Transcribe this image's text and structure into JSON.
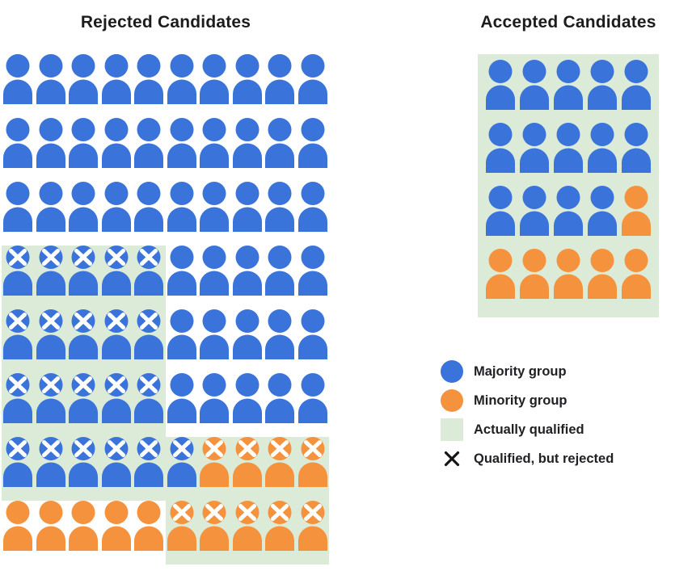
{
  "rejected": {
    "title": "Rejected Candidates",
    "rows": [
      [
        "b",
        "b",
        "b",
        "b",
        "b",
        "b",
        "b",
        "b",
        "b",
        "b"
      ],
      [
        "b",
        "b",
        "b",
        "b",
        "b",
        "b",
        "b",
        "b",
        "b",
        "b"
      ],
      [
        "b",
        "b",
        "b",
        "b",
        "b",
        "b",
        "b",
        "b",
        "b",
        "b"
      ],
      [
        "bqx",
        "bqx",
        "bqx",
        "bqx",
        "bqx",
        "b",
        "b",
        "b",
        "b",
        "b"
      ],
      [
        "bqx",
        "bqx",
        "bqx",
        "bqx",
        "bqx",
        "b",
        "b",
        "b",
        "b",
        "b"
      ],
      [
        "bqx",
        "bqx",
        "bqx",
        "bqx",
        "bqx",
        "b",
        "b",
        "b",
        "b",
        "b"
      ],
      [
        "bqx",
        "bqx",
        "bqx",
        "bqx",
        "bqx",
        "bqx",
        "oqx",
        "oqx",
        "oqx",
        "oqx"
      ],
      [
        "o",
        "o",
        "o",
        "o",
        "o",
        "oqx",
        "oqx",
        "oqx",
        "oqx",
        "oqx"
      ]
    ]
  },
  "accepted": {
    "title": "Accepted Candidates",
    "rows": [
      [
        "bq",
        "bq",
        "bq",
        "bq",
        "bq"
      ],
      [
        "bq",
        "bq",
        "bq",
        "bq",
        "bq"
      ],
      [
        "bq",
        "bq",
        "bq",
        "bq",
        "oq"
      ],
      [
        "oq",
        "oq",
        "oq",
        "oq",
        "oq"
      ]
    ]
  },
  "legend": {
    "items": [
      {
        "key": "majority-group",
        "swatch": "circle",
        "color": "blue",
        "label": "Majority group"
      },
      {
        "key": "minority-group",
        "swatch": "circle",
        "color": "orange",
        "label": "Minority group"
      },
      {
        "key": "actually-qualified",
        "swatch": "square",
        "color": "green",
        "label": "Actually qualified"
      },
      {
        "key": "qualified-but-rejected",
        "swatch": "x",
        "color": "black",
        "label": "Qualified, but rejected"
      }
    ]
  },
  "colors": {
    "blue": "#3a73d9",
    "orange": "#f4923d",
    "green": "#dcead8",
    "x_mark": "#ffffff",
    "legend_x": "#151515",
    "text": "#1c1c1c"
  }
}
